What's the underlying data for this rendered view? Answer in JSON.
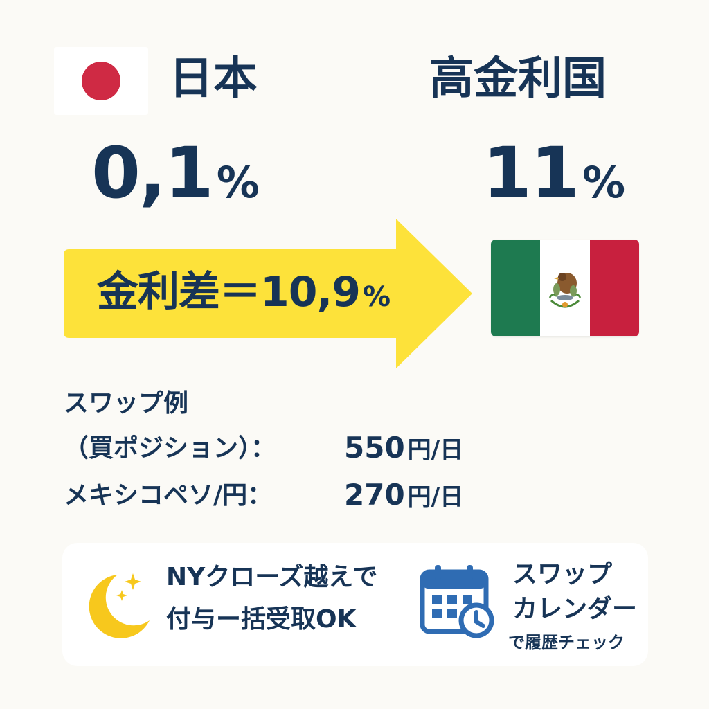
{
  "japan": {
    "country_label": "日本",
    "rate_value": "0,1",
    "rate_unit": "%",
    "flag_icon": "japan-flag-icon"
  },
  "high_rate_country": {
    "country_label": "高金利国",
    "rate_value": "11",
    "rate_unit": "%",
    "flag_icon": "mexico-flag-icon"
  },
  "interest_diff": {
    "label": "金利差＝10,9",
    "unit": "%"
  },
  "swap_example": {
    "title": "スワップ例",
    "row1": {
      "label": "（買ポジション）：",
      "value": "550",
      "unit": "円/日"
    },
    "row2": {
      "label": "メキシコペソ/円：",
      "value": "270",
      "unit": "円/日"
    }
  },
  "bottom": {
    "ny_close_line1": "NYクローズ越えで",
    "ny_close_line2": "付与ー括受取OK",
    "calendar_line1": "スワップ",
    "calendar_line2": "カレンダー",
    "calendar_line3": "で履歴チェック"
  },
  "colors": {
    "background": "#fbfaf6",
    "text_navy": "#173456",
    "arrow_yellow": "#fde23a",
    "japan_red": "#cf2a44",
    "mexico_green": "#1e7a50",
    "mexico_red": "#c8203e",
    "moon_yellow": "#f7c81d",
    "calendar_blue": "#2f6cb3"
  },
  "icons": [
    "japan-flag-icon",
    "mexico-flag-icon",
    "arrow-icon",
    "moon-icon",
    "calendar-icon"
  ]
}
